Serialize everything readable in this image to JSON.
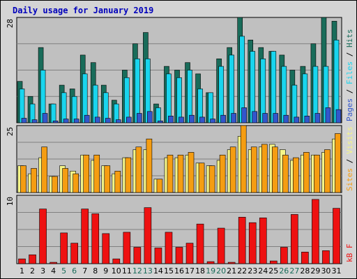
{
  "chart_data": {
    "type": "bar",
    "title": "Daily usage for January 2019",
    "categories": [
      "1",
      "2",
      "3",
      "4",
      "5",
      "6",
      "7",
      "8",
      "9",
      "10",
      "11",
      "12",
      "13",
      "14",
      "15",
      "16",
      "17",
      "18",
      "19",
      "20",
      "21",
      "22",
      "23",
      "24",
      "25",
      "26",
      "27",
      "28",
      "29",
      "30",
      "31"
    ],
    "weekend_days": [
      "5",
      "6",
      "12",
      "13",
      "19",
      "20",
      "26",
      "27"
    ],
    "panels": [
      {
        "name": "pages-files-hits",
        "ymax_label": "28",
        "ymax": 28,
        "legend": [
          "Pages",
          "Files",
          "Hits"
        ],
        "legend_separator": " / ",
        "series": [
          {
            "name": "Hits",
            "values": [
              11,
              7,
              20,
              5,
              10,
              9,
              18,
              16,
              10,
              6,
              14,
              21,
              24,
              5,
              15,
              14,
              16,
              13,
              8,
              17,
              20,
              28,
              22,
              20,
              19,
              18,
              14,
              15,
              21,
              28,
              27
            ]
          },
          {
            "name": "Files",
            "values": [
              9,
              5,
              14,
              5,
              8,
              7,
              13,
              10,
              8,
              5,
              12,
              17,
              17,
              4,
              13,
              12,
              14,
              9,
              8,
              15,
              18,
              23,
              19,
              17,
              19,
              15,
              10,
              13,
              15,
              15,
              22
            ]
          },
          {
            "name": "Pages",
            "values": [
              1.2,
              0.8,
              2.5,
              0.5,
              1.0,
              1.0,
              2.0,
              1.5,
              1.2,
              0.8,
              1.5,
              2.5,
              3.0,
              0.5,
              1.8,
              1.5,
              2.0,
              1.5,
              1.0,
              2.0,
              2.5,
              4.0,
              3.0,
              2.5,
              2.5,
              2.0,
              1.5,
              1.8,
              2.5,
              4.0,
              3.5
            ]
          }
        ],
        "colors": {
          "Hits": "#196c5a",
          "Files": "#19d5ee",
          "Pages": "#3356cc"
        }
      },
      {
        "name": "visits-sites",
        "ymax_label": "25",
        "ymax": 25,
        "legend": [
          "Sites",
          "Visits"
        ],
        "legend_separator": " / ",
        "series": [
          {
            "name": "Visits",
            "values": [
              10,
              7,
              13,
              6,
              10,
              8,
              14,
              12,
              10,
              7,
              13,
              16,
              16,
              5,
              13,
              13,
              14,
              11,
              10,
              12,
              16,
              21,
              16,
              17,
              18,
              16,
              12,
              14,
              14,
              15,
              20
            ]
          },
          {
            "name": "Sites",
            "values": [
              10,
              9,
              17,
              6,
              9,
              7,
              14,
              14,
              10,
              8,
              13,
              17,
              20,
              5,
              14,
              14,
              15,
              11,
              10,
              14,
              17,
              25,
              17,
              18,
              17,
              14,
              13,
              15,
              14,
              16,
              22
            ]
          }
        ],
        "colors": {
          "Visits": "#f5f588",
          "Sites": "#f59d12"
        }
      },
      {
        "name": "kb-f",
        "ymax_label": "10",
        "ymax": 10,
        "legend": [
          "kB F"
        ],
        "legend_separator": "",
        "series": [
          {
            "name": "kB F",
            "values": [
              0.7,
              1.3,
              8.0,
              0.2,
              4.5,
              3.0,
              8.0,
              7.3,
              4.4,
              0.7,
              4.6,
              2.4,
              8.2,
              2.3,
              4.6,
              2.4,
              3.0,
              5.8,
              0.3,
              5.2,
              0.2,
              6.8,
              6.0,
              6.7,
              0.4,
              2.4,
              7.2,
              1.7,
              9.4,
              1.9,
              8.1
            ]
          }
        ],
        "colors": {
          "kB F": "#ee1111"
        }
      }
    ],
    "grid": true,
    "background": "#c0c0c0",
    "colors": {
      "frame_bg": "#d4d4d4",
      "plot_bg": "#c0c0c0",
      "gridline": "#808080",
      "weekday_label": "#000000",
      "weekend_label": "#196c5a",
      "legend_sep": "#000000"
    }
  }
}
